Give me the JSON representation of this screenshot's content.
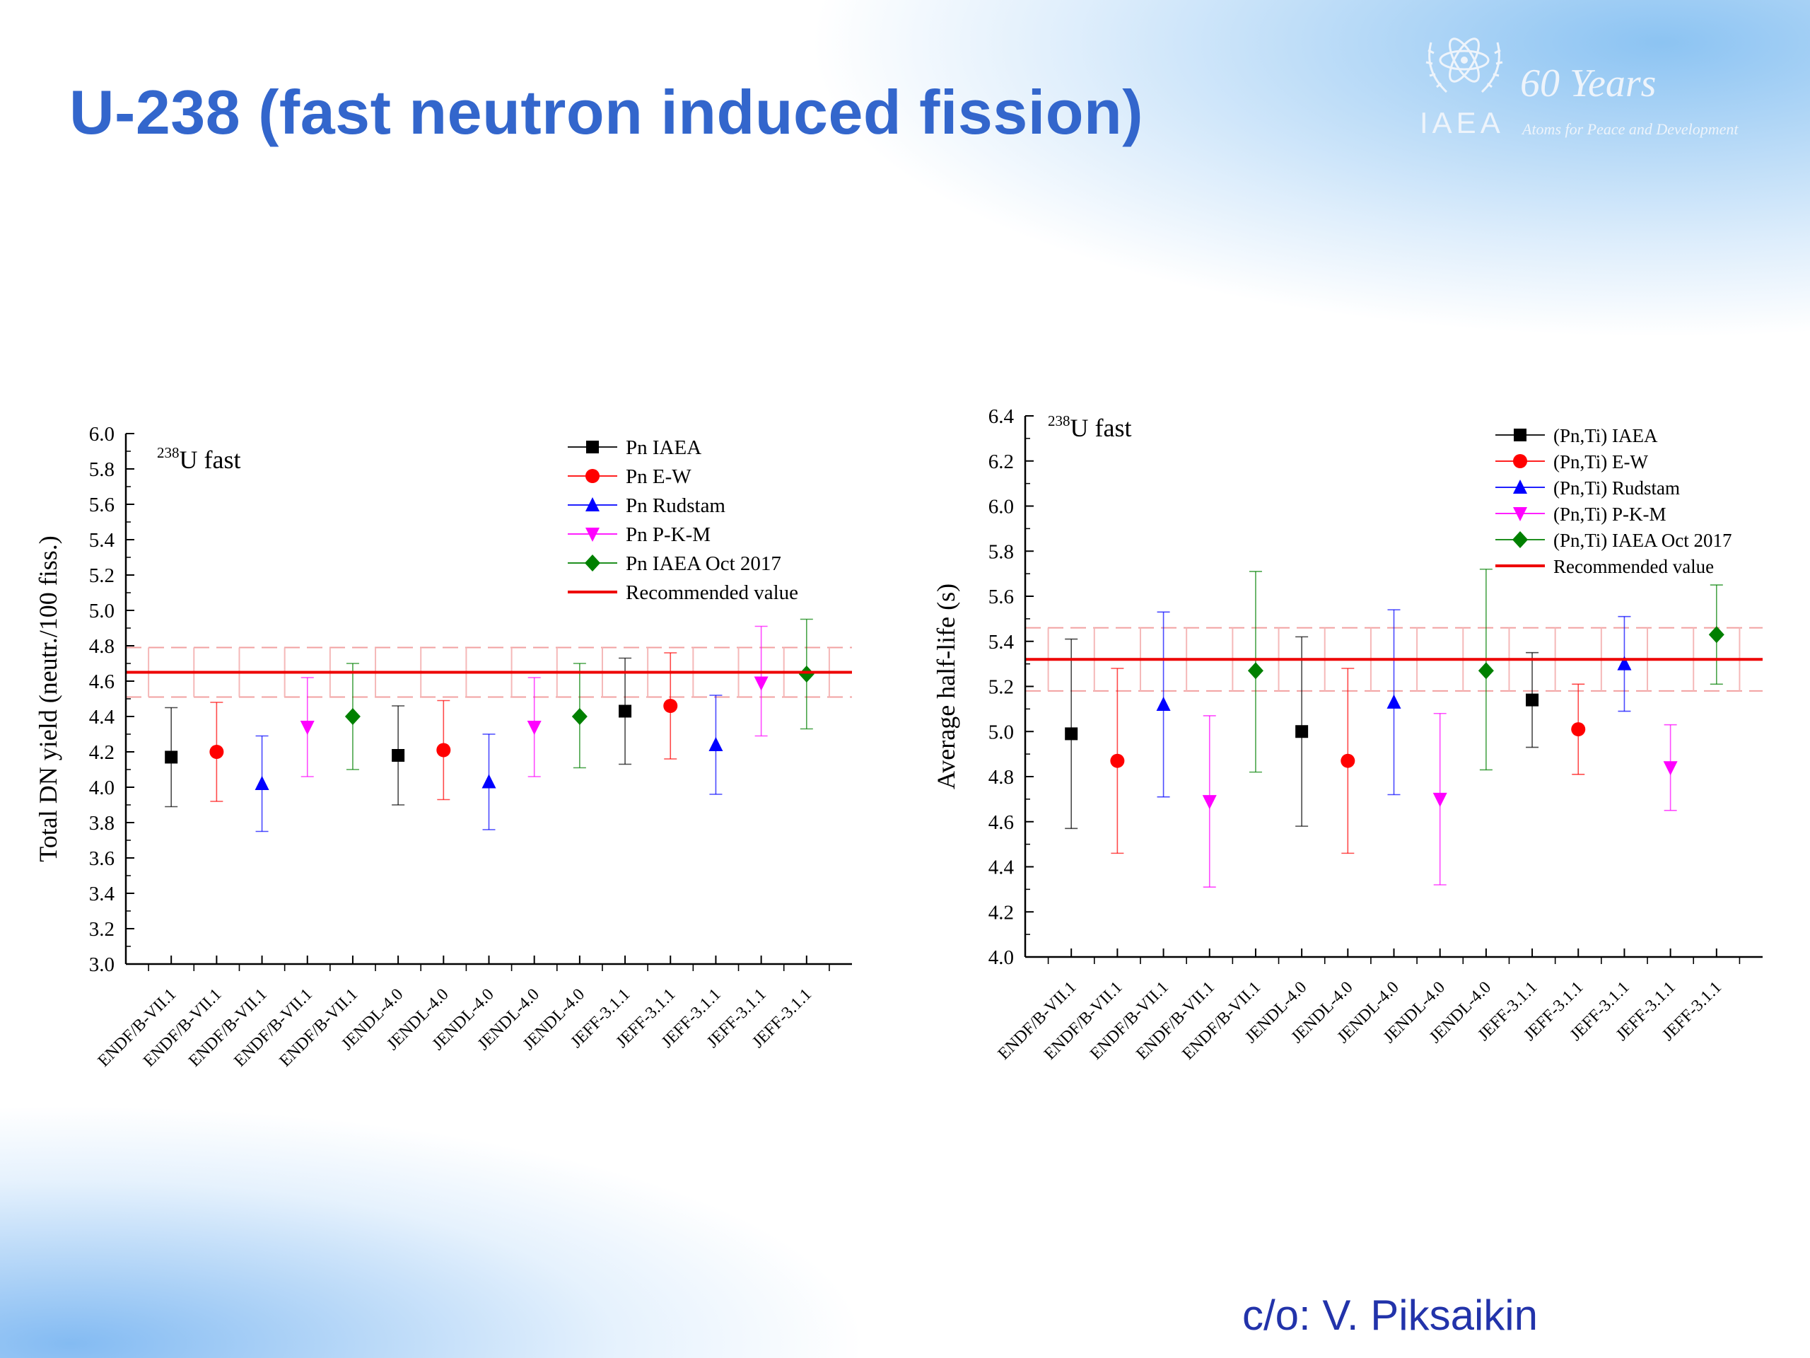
{
  "slide": {
    "title": "U-238 (fast neutron induced fission)",
    "credit": "c/o: V. Piksaikin",
    "logo": {
      "org": "IAEA",
      "years": "60 Years",
      "tagline": "Atoms for Peace and Development"
    }
  },
  "colors": {
    "title": "#3366cc",
    "credit": "#2233aa",
    "IAEA": "#000000",
    "E-W": "#ff0000",
    "Rudstam": "#0000ff",
    "P-K-M": "#ff00ff",
    "IAEA Oct 2017": "#008000",
    "recommended": "#ee0000"
  },
  "chart_data": [
    {
      "type": "scatter",
      "annotation": {
        "mass": "238",
        "text": "U fast"
      },
      "ylabel": "Total DN yield (neutr./100 fiss.)",
      "ylim": [
        3.0,
        6.0
      ],
      "yticks": [
        "3.0",
        "3.2",
        "3.4",
        "3.6",
        "3.8",
        "4.0",
        "4.2",
        "4.4",
        "4.6",
        "4.8",
        "5.0",
        "5.2",
        "5.4",
        "5.6",
        "5.8",
        "6.0"
      ],
      "categories": [
        "ENDF/B-VII.1",
        "ENDF/B-VII.1",
        "ENDF/B-VII.1",
        "ENDF/B-VII.1",
        "ENDF/B-VII.1",
        "JENDL-4.0",
        "JENDL-4.0",
        "JENDL-4.0",
        "JENDL-4.0",
        "JENDL-4.0",
        "JEFF-3.1.1",
        "JEFF-3.1.1",
        "JEFF-3.1.1",
        "JEFF-3.1.1",
        "JEFF-3.1.1"
      ],
      "legend_position": "top-right",
      "series": [
        {
          "name": "Pn IAEA",
          "marker": "square",
          "points": [
            [
              0,
              4.17,
              3.89,
              4.45
            ],
            [
              5,
              4.18,
              3.9,
              4.46
            ],
            [
              10,
              4.43,
              4.13,
              4.73
            ]
          ]
        },
        {
          "name": "Pn E-W",
          "marker": "circle",
          "points": [
            [
              1,
              4.2,
              3.92,
              4.48
            ],
            [
              6,
              4.21,
              3.93,
              4.49
            ],
            [
              11,
              4.46,
              4.16,
              4.76
            ]
          ]
        },
        {
          "name": "Pn Rudstam",
          "marker": "triangle-up",
          "points": [
            [
              2,
              4.02,
              3.75,
              4.29
            ],
            [
              7,
              4.03,
              3.76,
              4.3
            ],
            [
              12,
              4.24,
              3.96,
              4.52
            ]
          ]
        },
        {
          "name": "Pn P-K-M",
          "marker": "triangle-down",
          "points": [
            [
              3,
              4.34,
              4.06,
              4.62
            ],
            [
              8,
              4.34,
              4.06,
              4.62
            ],
            [
              13,
              4.59,
              4.29,
              4.91
            ]
          ]
        },
        {
          "name": "Pn IAEA Oct 2017",
          "marker": "diamond",
          "points": [
            [
              4,
              4.4,
              4.1,
              4.7
            ],
            [
              9,
              4.4,
              4.11,
              4.7
            ],
            [
              14,
              4.64,
              4.33,
              4.95
            ]
          ]
        }
      ],
      "recommended": {
        "name": "Recommended value",
        "value": 4.65,
        "low": 4.51,
        "high": 4.79
      }
    },
    {
      "type": "scatter",
      "annotation": {
        "mass": "238",
        "text": "U fast"
      },
      "ylabel": "Average half-life (s)",
      "ylim": [
        4.0,
        6.4
      ],
      "yticks": [
        "4.0",
        "4.2",
        "4.4",
        "4.6",
        "4.8",
        "5.0",
        "5.2",
        "5.4",
        "5.6",
        "5.8",
        "6.0",
        "6.2",
        "6.4"
      ],
      "categories": [
        "ENDF/B-VII.1",
        "ENDF/B-VII.1",
        "ENDF/B-VII.1",
        "ENDF/B-VII.1",
        "ENDF/B-VII.1",
        "JENDL-4.0",
        "JENDL-4.0",
        "JENDL-4.0",
        "JENDL-4.0",
        "JENDL-4.0",
        "JEFF-3.1.1",
        "JEFF-3.1.1",
        "JEFF-3.1.1",
        "JEFF-3.1.1",
        "JEFF-3.1.1"
      ],
      "legend_position": "top-right",
      "series": [
        {
          "name": "(Pn,Ti) IAEA",
          "marker": "square",
          "points": [
            [
              0,
              4.99,
              4.57,
              5.41
            ],
            [
              5,
              5.0,
              4.58,
              5.42
            ],
            [
              10,
              5.14,
              4.93,
              5.35
            ]
          ]
        },
        {
          "name": "(Pn,Ti) E-W",
          "marker": "circle",
          "points": [
            [
              1,
              4.87,
              4.46,
              5.28
            ],
            [
              6,
              4.87,
              4.46,
              5.28
            ],
            [
              11,
              5.01,
              4.81,
              5.21
            ]
          ]
        },
        {
          "name": "(Pn,Ti) Rudstam",
          "marker": "triangle-up",
          "points": [
            [
              2,
              5.12,
              4.71,
              5.53
            ],
            [
              7,
              5.13,
              4.72,
              5.54
            ],
            [
              12,
              5.3,
              5.09,
              5.51
            ]
          ]
        },
        {
          "name": "(Pn,Ti) P-K-M",
          "marker": "triangle-down",
          "points": [
            [
              3,
              4.69,
              4.31,
              5.07
            ],
            [
              8,
              4.7,
              4.32,
              5.08
            ],
            [
              13,
              4.84,
              4.65,
              5.03
            ]
          ]
        },
        {
          "name": "(Pn,Ti) IAEA Oct 2017",
          "marker": "diamond",
          "points": [
            [
              4,
              5.27,
              4.82,
              5.71
            ],
            [
              9,
              5.27,
              4.83,
              5.72
            ],
            [
              14,
              5.43,
              5.21,
              5.65
            ]
          ]
        }
      ],
      "recommended": {
        "name": "Recommended value",
        "value": 5.32,
        "low": 5.18,
        "high": 5.46
      }
    }
  ]
}
